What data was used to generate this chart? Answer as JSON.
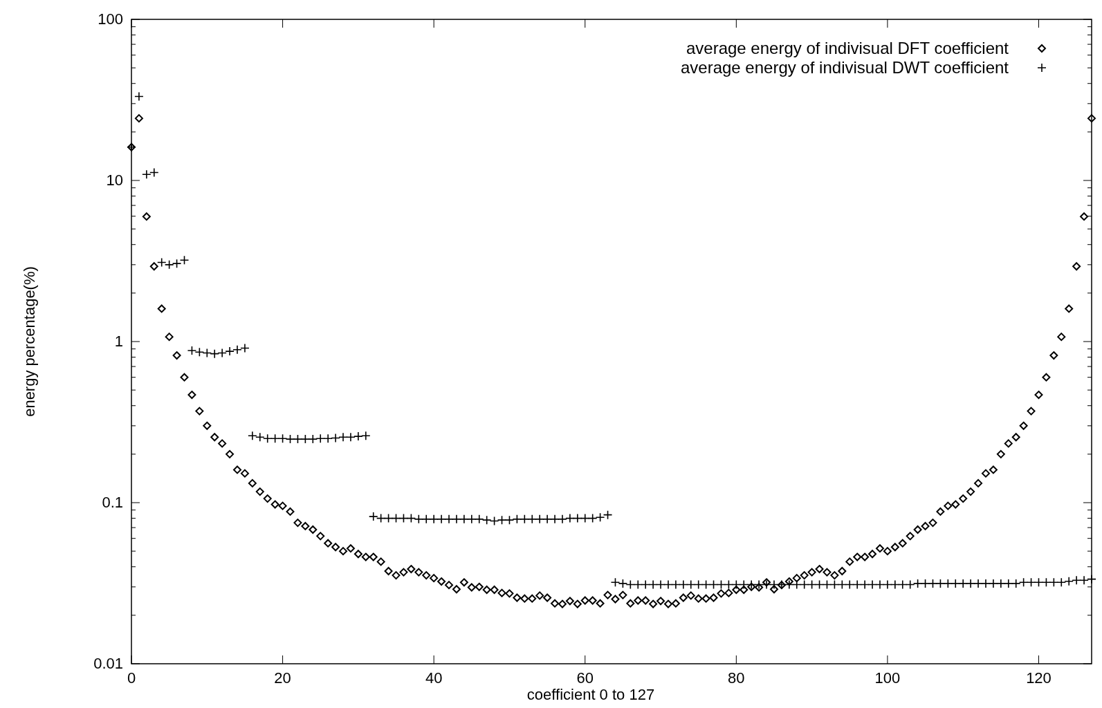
{
  "chart_data": {
    "type": "scatter",
    "xlabel": "coefficient 0 to 127",
    "ylabel": "energy percentage(%)",
    "log": "y",
    "xlim": [
      0,
      127
    ],
    "xticks": [
      0,
      20,
      40,
      60,
      80,
      100,
      120
    ],
    "ylim": [
      0.01,
      100
    ],
    "yticks": [
      {
        "value": 0.01,
        "label": "0.01"
      },
      {
        "value": 0.02,
        "label": null
      },
      {
        "value": 0.03,
        "label": null
      },
      {
        "value": 0.04,
        "label": null
      },
      {
        "value": 0.05,
        "label": null
      },
      {
        "value": 0.06,
        "label": null
      },
      {
        "value": 0.07,
        "label": null
      },
      {
        "value": 0.08,
        "label": null
      },
      {
        "value": 0.09,
        "label": null
      },
      {
        "value": 0.1,
        "label": "0.1"
      },
      {
        "value": 0.2,
        "label": null
      },
      {
        "value": 0.3,
        "label": null
      },
      {
        "value": 0.4,
        "label": null
      },
      {
        "value": 0.5,
        "label": null
      },
      {
        "value": 0.6,
        "label": null
      },
      {
        "value": 0.7,
        "label": null
      },
      {
        "value": 0.8,
        "label": null
      },
      {
        "value": 0.9,
        "label": null
      },
      {
        "value": 1,
        "label": "1"
      },
      {
        "value": 2,
        "label": null
      },
      {
        "value": 3,
        "label": null
      },
      {
        "value": 4,
        "label": null
      },
      {
        "value": 5,
        "label": null
      },
      {
        "value": 6,
        "label": null
      },
      {
        "value": 7,
        "label": null
      },
      {
        "value": 8,
        "label": null
      },
      {
        "value": 9,
        "label": null
      },
      {
        "value": 10,
        "label": "10"
      },
      {
        "value": 20,
        "label": null
      },
      {
        "value": 30,
        "label": null
      },
      {
        "value": 40,
        "label": null
      },
      {
        "value": 50,
        "label": null
      },
      {
        "value": 60,
        "label": null
      },
      {
        "value": 70,
        "label": null
      },
      {
        "value": 80,
        "label": null
      },
      {
        "value": 90,
        "label": null
      },
      {
        "value": 100,
        "label": "100"
      }
    ],
    "grid": false,
    "legend": "top right",
    "x": [
      0,
      1,
      2,
      3,
      4,
      5,
      6,
      7,
      8,
      9,
      10,
      11,
      12,
      13,
      14,
      15,
      16,
      17,
      18,
      19,
      20,
      21,
      22,
      23,
      24,
      25,
      26,
      27,
      28,
      29,
      30,
      31,
      32,
      33,
      34,
      35,
      36,
      37,
      38,
      39,
      40,
      41,
      42,
      43,
      44,
      45,
      46,
      47,
      48,
      49,
      50,
      51,
      52,
      53,
      54,
      55,
      56,
      57,
      58,
      59,
      60,
      61,
      62,
      63,
      64,
      65,
      66,
      67,
      68,
      69,
      70,
      71,
      72,
      73,
      74,
      75,
      76,
      77,
      78,
      79,
      80,
      81,
      82,
      83,
      84,
      85,
      86,
      87,
      88,
      89,
      90,
      91,
      92,
      93,
      94,
      95,
      96,
      97,
      98,
      99,
      100,
      101,
      102,
      103,
      104,
      105,
      106,
      107,
      108,
      109,
      110,
      111,
      112,
      113,
      114,
      115,
      116,
      117,
      118,
      119,
      120,
      121,
      122,
      123,
      124,
      125,
      126,
      127
    ],
    "series": [
      {
        "name": "average energy of indivisual DFT coefficient",
        "color": "#000000",
        "marker": "diamond",
        "values": [
          16.1,
          24.3,
          5.97,
          2.93,
          1.6,
          1.07,
          0.82,
          0.6,
          0.467,
          0.37,
          0.3,
          0.255,
          0.233,
          0.2,
          0.16,
          0.152,
          0.132,
          0.117,
          0.106,
          0.0975,
          0.0955,
          0.088,
          0.075,
          0.0715,
          0.068,
          0.062,
          0.056,
          0.053,
          0.05,
          0.052,
          0.048,
          0.046,
          0.046,
          0.043,
          0.0376,
          0.0354,
          0.037,
          0.0387,
          0.037,
          0.0354,
          0.034,
          0.0324,
          0.0308,
          0.029,
          0.032,
          0.0298,
          0.03,
          0.0288,
          0.0288,
          0.0275,
          0.0273,
          0.0257,
          0.0254,
          0.0254,
          0.0265,
          0.0257,
          0.0237,
          0.0235,
          0.0245,
          0.0235,
          0.0247,
          0.0247,
          0.0237,
          0.0267,
          0.0252,
          0.0267,
          0.0237,
          0.0247,
          0.0247,
          0.0235,
          0.0245,
          0.0235,
          0.0237,
          0.0257,
          0.0265,
          0.0254,
          0.0254,
          0.0257,
          0.0273,
          0.0275,
          0.0288,
          0.0288,
          0.03,
          0.0298,
          0.032,
          0.029,
          0.0308,
          0.0324,
          0.034,
          0.0354,
          0.037,
          0.0387,
          0.037,
          0.0354,
          0.0376,
          0.043,
          0.046,
          0.046,
          0.048,
          0.052,
          0.05,
          0.053,
          0.056,
          0.062,
          0.068,
          0.0715,
          0.075,
          0.088,
          0.0955,
          0.0975,
          0.106,
          0.117,
          0.132,
          0.152,
          0.16,
          0.2,
          0.233,
          0.255,
          0.3,
          0.37,
          0.467,
          0.6,
          0.82,
          1.07,
          1.6,
          2.93,
          5.97,
          24.3
        ]
      },
      {
        "name": "average energy of indivisual DWT coefficient",
        "color": "#000000",
        "marker": "cross",
        "values": [
          16.1,
          33.2,
          10.9,
          11.2,
          3.1,
          3.0,
          3.05,
          3.2,
          0.88,
          0.86,
          0.85,
          0.84,
          0.85,
          0.87,
          0.89,
          0.91,
          0.26,
          0.255,
          0.25,
          0.25,
          0.25,
          0.248,
          0.248,
          0.248,
          0.248,
          0.25,
          0.25,
          0.252,
          0.255,
          0.255,
          0.258,
          0.26,
          0.082,
          0.08,
          0.08,
          0.08,
          0.08,
          0.08,
          0.079,
          0.079,
          0.079,
          0.079,
          0.079,
          0.079,
          0.079,
          0.079,
          0.079,
          0.078,
          0.077,
          0.078,
          0.078,
          0.079,
          0.079,
          0.079,
          0.079,
          0.079,
          0.079,
          0.079,
          0.08,
          0.08,
          0.08,
          0.08,
          0.081,
          0.084,
          0.032,
          0.0315,
          0.031,
          0.031,
          0.031,
          0.031,
          0.031,
          0.031,
          0.031,
          0.031,
          0.031,
          0.031,
          0.031,
          0.031,
          0.031,
          0.031,
          0.031,
          0.031,
          0.031,
          0.031,
          0.031,
          0.031,
          0.031,
          0.031,
          0.031,
          0.031,
          0.031,
          0.031,
          0.031,
          0.031,
          0.031,
          0.031,
          0.031,
          0.031,
          0.031,
          0.031,
          0.031,
          0.031,
          0.031,
          0.031,
          0.0315,
          0.0315,
          0.0315,
          0.0315,
          0.0315,
          0.0315,
          0.0315,
          0.0315,
          0.0315,
          0.0315,
          0.0315,
          0.0315,
          0.0315,
          0.0315,
          0.032,
          0.032,
          0.032,
          0.032,
          0.032,
          0.032,
          0.0325,
          0.033,
          0.033,
          0.0335
        ]
      }
    ]
  }
}
